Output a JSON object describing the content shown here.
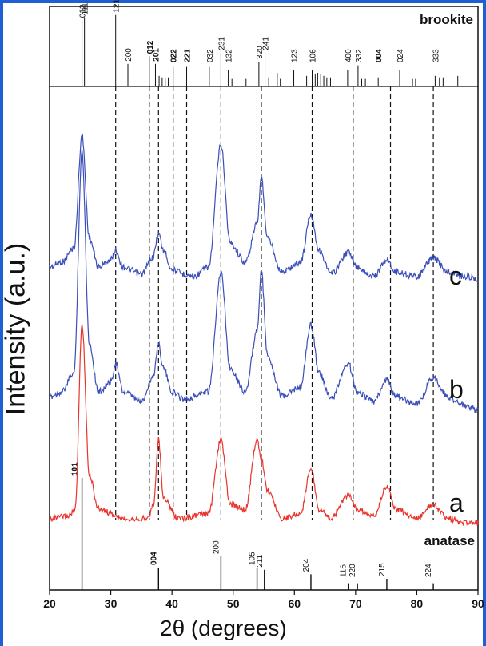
{
  "chart_data": {
    "type": "line",
    "xlabel": "2θ (degrees)",
    "ylabel": "Intensity (a.u.)",
    "xlim": [
      20,
      90
    ],
    "x_ticks": [
      20,
      30,
      40,
      50,
      60,
      70,
      80,
      90
    ],
    "grid": false,
    "series": [
      {
        "name": "c",
        "color": "#3b4fb8",
        "points": [
          [
            20,
            0.08
          ],
          [
            22,
            0.1
          ],
          [
            24,
            0.16
          ],
          [
            25.3,
            0.63
          ],
          [
            26.5,
            0.2
          ],
          [
            28,
            0.08
          ],
          [
            30,
            0.11
          ],
          [
            30.8,
            0.15
          ],
          [
            32,
            0.08
          ],
          [
            35,
            0.05
          ],
          [
            36.9,
            0.12
          ],
          [
            37.8,
            0.22
          ],
          [
            38.6,
            0.15
          ],
          [
            40,
            0.07
          ],
          [
            42,
            0.05
          ],
          [
            43.5,
            0.04
          ],
          [
            46,
            0.08
          ],
          [
            48,
            0.59
          ],
          [
            49.5,
            0.18
          ],
          [
            52,
            0.1
          ],
          [
            53.9,
            0.26
          ],
          [
            54.6,
            0.45
          ],
          [
            55.6,
            0.2
          ],
          [
            58,
            0.06
          ],
          [
            61,
            0.1
          ],
          [
            62.7,
            0.3
          ],
          [
            64,
            0.15
          ],
          [
            66,
            0.05
          ],
          [
            68.8,
            0.14
          ],
          [
            70.2,
            0.08
          ],
          [
            73,
            0.04
          ],
          [
            75.1,
            0.11
          ],
          [
            76.5,
            0.06
          ],
          [
            80,
            0.04
          ],
          [
            82.7,
            0.12
          ],
          [
            85,
            0.06
          ],
          [
            88,
            0.04
          ],
          [
            90,
            0.03
          ]
        ]
      },
      {
        "name": "b",
        "color": "#3b4fb8",
        "points": [
          [
            20,
            0.08
          ],
          [
            22,
            0.1
          ],
          [
            24,
            0.18
          ],
          [
            25.3,
            1.1
          ],
          [
            26.5,
            0.3
          ],
          [
            28,
            0.1
          ],
          [
            30,
            0.14
          ],
          [
            30.8,
            0.22
          ],
          [
            32,
            0.1
          ],
          [
            35,
            0.06
          ],
          [
            36.9,
            0.16
          ],
          [
            37.8,
            0.3
          ],
          [
            38.6,
            0.2
          ],
          [
            40,
            0.1
          ],
          [
            42,
            0.07
          ],
          [
            46,
            0.1
          ],
          [
            48,
            0.6
          ],
          [
            49.5,
            0.2
          ],
          [
            52,
            0.1
          ],
          [
            53.9,
            0.35
          ],
          [
            54.6,
            0.6
          ],
          [
            55.6,
            0.25
          ],
          [
            58,
            0.08
          ],
          [
            61,
            0.12
          ],
          [
            62.7,
            0.38
          ],
          [
            64,
            0.18
          ],
          [
            66,
            0.07
          ],
          [
            68.8,
            0.22
          ],
          [
            70.2,
            0.1
          ],
          [
            73,
            0.06
          ],
          [
            75.1,
            0.15
          ],
          [
            76.5,
            0.08
          ],
          [
            80,
            0.05
          ],
          [
            82.7,
            0.16
          ],
          [
            85,
            0.08
          ],
          [
            88,
            0.04
          ],
          [
            90,
            0.02
          ]
        ]
      },
      {
        "name": "a",
        "color": "#e8342c",
        "points": [
          [
            20,
            0.06
          ],
          [
            23,
            0.07
          ],
          [
            24.2,
            0.1
          ],
          [
            25.3,
            0.9
          ],
          [
            26.5,
            0.25
          ],
          [
            28,
            0.1
          ],
          [
            32,
            0.06
          ],
          [
            36,
            0.06
          ],
          [
            37.0,
            0.12
          ],
          [
            37.8,
            0.4
          ],
          [
            38.6,
            0.15
          ],
          [
            41,
            0.06
          ],
          [
            46,
            0.08
          ],
          [
            48,
            0.4
          ],
          [
            49.5,
            0.12
          ],
          [
            52,
            0.1
          ],
          [
            53.9,
            0.4
          ],
          [
            54.6,
            0.32
          ],
          [
            55.6,
            0.18
          ],
          [
            58,
            0.06
          ],
          [
            61,
            0.08
          ],
          [
            62.7,
            0.28
          ],
          [
            64,
            0.1
          ],
          [
            66,
            0.06
          ],
          [
            68.8,
            0.16
          ],
          [
            70.2,
            0.1
          ],
          [
            73,
            0.07
          ],
          [
            75.1,
            0.2
          ],
          [
            76.5,
            0.1
          ],
          [
            80,
            0.06
          ],
          [
            82.7,
            0.12
          ],
          [
            85,
            0.06
          ],
          [
            88,
            0.04
          ],
          [
            90,
            0.04
          ]
        ]
      }
    ],
    "curve_labels": [
      "c",
      "b",
      "a"
    ],
    "brookite": {
      "label": "brookite",
      "reflections": [
        {
          "x": 25.3,
          "label": "012",
          "h": 0.88,
          "bold": false
        },
        {
          "x": 25.7,
          "label": "111",
          "h": 0.92,
          "bold": false
        },
        {
          "x": 30.8,
          "label": "121",
          "h": 0.95,
          "bold": true
        },
        {
          "x": 32.8,
          "label": "200",
          "h": 0.3,
          "bold": false
        },
        {
          "x": 36.3,
          "label": "012",
          "h": 0.4,
          "bold": true
        },
        {
          "x": 37.3,
          "label": "201",
          "h": 0.3,
          "bold": true
        },
        {
          "x": 37.9,
          "label": "",
          "h": 0.14,
          "bold": false
        },
        {
          "x": 38.4,
          "label": "",
          "h": 0.12,
          "bold": false
        },
        {
          "x": 38.9,
          "label": "",
          "h": 0.12,
          "bold": false
        },
        {
          "x": 39.4,
          "label": "",
          "h": 0.12,
          "bold": false
        },
        {
          "x": 40.2,
          "label": "022",
          "h": 0.26,
          "bold": true
        },
        {
          "x": 42.4,
          "label": "221",
          "h": 0.26,
          "bold": true
        },
        {
          "x": 46.1,
          "label": "032",
          "h": 0.26,
          "bold": false
        },
        {
          "x": 48.0,
          "label": "231",
          "h": 0.45,
          "bold": false
        },
        {
          "x": 49.2,
          "label": "132",
          "h": 0.22,
          "bold": false
        },
        {
          "x": 49.8,
          "label": "",
          "h": 0.1,
          "bold": false
        },
        {
          "x": 52.1,
          "label": "",
          "h": 0.1,
          "bold": false
        },
        {
          "x": 54.2,
          "label": "320",
          "h": 0.33,
          "bold": false
        },
        {
          "x": 55.2,
          "label": "241",
          "h": 0.45,
          "bold": false
        },
        {
          "x": 55.8,
          "label": "",
          "h": 0.12,
          "bold": false
        },
        {
          "x": 57.2,
          "label": "",
          "h": 0.18,
          "bold": false
        },
        {
          "x": 57.7,
          "label": "",
          "h": 0.1,
          "bold": false
        },
        {
          "x": 59.9,
          "label": "123",
          "h": 0.22,
          "bold": false
        },
        {
          "x": 62.0,
          "label": "",
          "h": 0.14,
          "bold": false
        },
        {
          "x": 62.9,
          "label": "106",
          "h": 0.22,
          "bold": false
        },
        {
          "x": 63.4,
          "label": "",
          "h": 0.16,
          "bold": false
        },
        {
          "x": 63.8,
          "label": "",
          "h": 0.18,
          "bold": false
        },
        {
          "x": 64.3,
          "label": "",
          "h": 0.16,
          "bold": false
        },
        {
          "x": 64.8,
          "label": "",
          "h": 0.14,
          "bold": false
        },
        {
          "x": 65.3,
          "label": "",
          "h": 0.12,
          "bold": false
        },
        {
          "x": 65.9,
          "label": "",
          "h": 0.12,
          "bold": false
        },
        {
          "x": 68.7,
          "label": "400",
          "h": 0.22,
          "bold": false
        },
        {
          "x": 70.4,
          "label": "332",
          "h": 0.28,
          "bold": false
        },
        {
          "x": 71.0,
          "label": "",
          "h": 0.1,
          "bold": false
        },
        {
          "x": 71.6,
          "label": "",
          "h": 0.1,
          "bold": false
        },
        {
          "x": 73.7,
          "label": "004",
          "h": 0.12,
          "bold": true
        },
        {
          "x": 77.2,
          "label": "024",
          "h": 0.22,
          "bold": false
        },
        {
          "x": 79.3,
          "label": "",
          "h": 0.1,
          "bold": false
        },
        {
          "x": 79.8,
          "label": "",
          "h": 0.1,
          "bold": false
        },
        {
          "x": 83.0,
          "label": "333",
          "h": 0.14,
          "bold": false
        },
        {
          "x": 83.7,
          "label": "",
          "h": 0.12,
          "bold": false
        },
        {
          "x": 84.3,
          "label": "",
          "h": 0.12,
          "bold": false
        },
        {
          "x": 86.7,
          "label": "",
          "h": 0.14,
          "bold": false
        }
      ]
    },
    "anatase": {
      "label": "anatase",
      "reflections": [
        {
          "x": 25.3,
          "label": "101",
          "h": 1.0,
          "bold": true
        },
        {
          "x": 37.8,
          "label": "004",
          "h": 0.2,
          "bold": true
        },
        {
          "x": 48.0,
          "label": "200",
          "h": 0.3,
          "bold": false
        },
        {
          "x": 53.9,
          "label": "105",
          "h": 0.2,
          "bold": false
        },
        {
          "x": 55.1,
          "label": "211",
          "h": 0.18,
          "bold": false
        },
        {
          "x": 62.7,
          "label": "204",
          "h": 0.14,
          "bold": false
        },
        {
          "x": 68.8,
          "label": "116",
          "h": 0.06,
          "bold": false
        },
        {
          "x": 70.3,
          "label": "220",
          "h": 0.06,
          "bold": false
        },
        {
          "x": 75.1,
          "label": "215",
          "h": 0.1,
          "bold": false
        },
        {
          "x": 82.7,
          "label": "224",
          "h": 0.06,
          "bold": false
        }
      ]
    },
    "dashed_guides": [
      30.8,
      36.3,
      37.8,
      40.2,
      42.4,
      48.0,
      54.6,
      62.9,
      69.6,
      75.7,
      82.7
    ]
  }
}
